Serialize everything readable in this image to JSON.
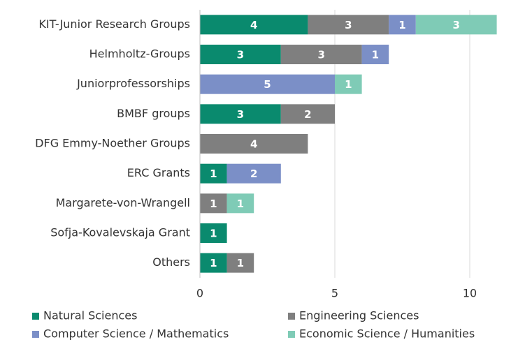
{
  "chart_data": {
    "type": "stacked_barh",
    "categories": [
      "KIT-Junior Research Groups",
      "Helmholtz-Groups",
      "Juniorprofessorships",
      "BMBF groups",
      "DFG Emmy-Noether Groups",
      "ERC Grants",
      "Margarete-von-Wrangell",
      "Sofja-Kovalevskaja Grant",
      "Others"
    ],
    "series": [
      {
        "name": "Natural Sciences",
        "color": "#0a8a6e",
        "values": [
          4,
          3,
          0,
          3,
          0,
          1,
          0,
          1,
          1
        ]
      },
      {
        "name": "Engineering Sciences",
        "color": "#7f7f7f",
        "values": [
          3,
          3,
          0,
          2,
          4,
          0,
          1,
          0,
          1
        ]
      },
      {
        "name": "Computer Science / Mathematics",
        "color": "#7b8fc7",
        "values": [
          1,
          1,
          5,
          0,
          0,
          2,
          0,
          0,
          0
        ]
      },
      {
        "name": "Economic Science / Humanities",
        "color": "#7fcbb6",
        "values": [
          3,
          0,
          1,
          0,
          0,
          0,
          1,
          0,
          0
        ]
      }
    ],
    "xlim": [
      0,
      11.5
    ],
    "xticks": [
      0,
      5,
      10
    ],
    "grid": true,
    "legend": "bottom"
  }
}
